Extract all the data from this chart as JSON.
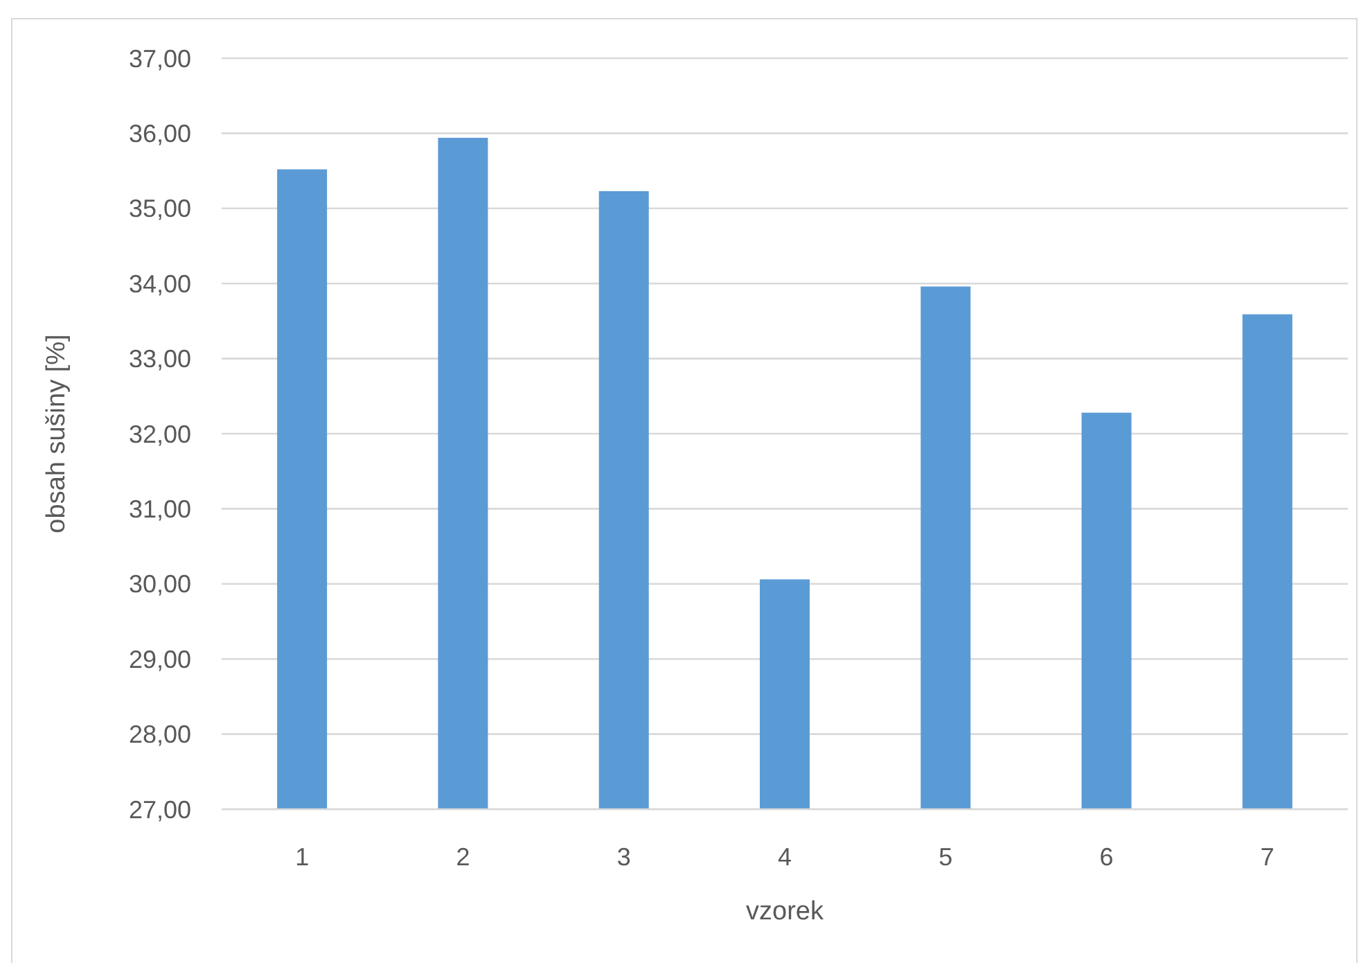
{
  "chart_data": {
    "type": "bar",
    "xlabel": "vzorek",
    "ylabel": "obsah sušiny [%]",
    "categories": [
      "1",
      "2",
      "3",
      "4",
      "5",
      "6",
      "7"
    ],
    "values": [
      35.52,
      35.94,
      35.23,
      30.06,
      33.96,
      32.28,
      33.59
    ],
    "color": "#5b9bd5",
    "ylim": [
      27,
      37
    ],
    "yticks": [
      {
        "value": 27,
        "label": "27,00"
      },
      {
        "value": 28,
        "label": "28,00"
      },
      {
        "value": 29,
        "label": "29,00"
      },
      {
        "value": 30,
        "label": "30,00"
      },
      {
        "value": 31,
        "label": "31,00"
      },
      {
        "value": 32,
        "label": "32,00"
      },
      {
        "value": 33,
        "label": "33,00"
      },
      {
        "value": 34,
        "label": "34,00"
      },
      {
        "value": 35,
        "label": "35,00"
      },
      {
        "value": 36,
        "label": "36,00"
      },
      {
        "value": 37,
        "label": "37,00"
      }
    ],
    "grid": "y"
  }
}
